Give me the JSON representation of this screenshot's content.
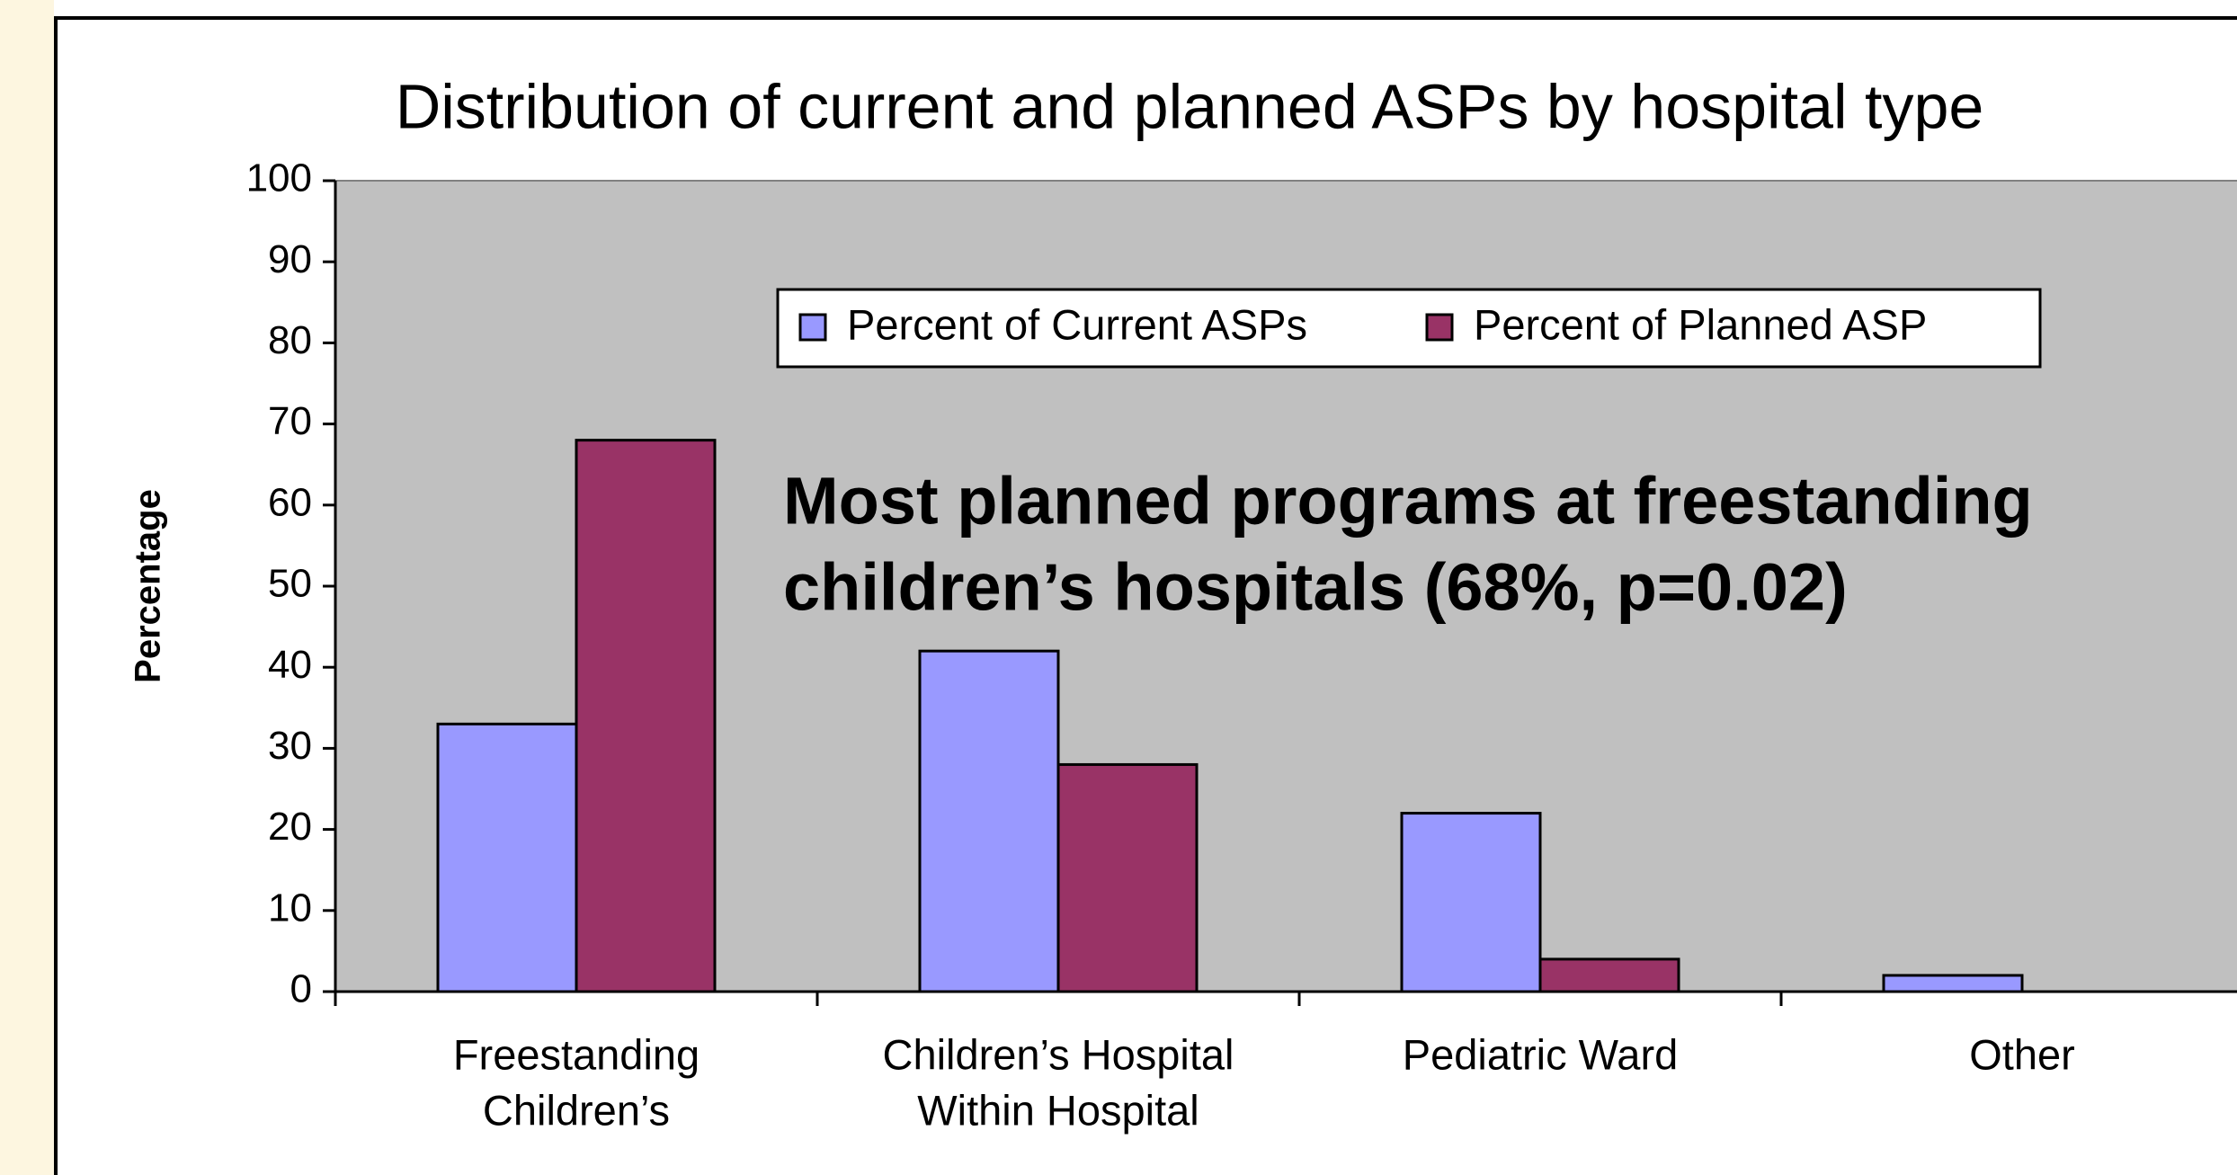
{
  "chart_data": {
    "type": "bar",
    "title": "Distribution of current and planned ASPs by hospital type",
    "y_label": "Percentage",
    "annotation": [
      "Most planned programs at freestanding",
      "children’s hospitals (68%, p=0.02)"
    ],
    "categories": [
      [
        "Freestanding",
        "Children’s"
      ],
      [
        "Children’s Hospital",
        "Within Hospital"
      ],
      [
        "Pediatric Ward"
      ],
      [
        "Other"
      ]
    ],
    "series": [
      {
        "name": "Percent of Current ASPs",
        "color": "#9999ff",
        "values": [
          33,
          42,
          22,
          2
        ]
      },
      {
        "name": "Percent of Planned ASP",
        "color": "#993366",
        "values": [
          68,
          28,
          4,
          0
        ]
      }
    ],
    "ylim": [
      0,
      100
    ],
    "yticks": [
      0,
      10,
      20,
      30,
      40,
      50,
      60,
      70,
      80,
      90,
      100
    ],
    "plot_background": "#c0c0c0"
  }
}
